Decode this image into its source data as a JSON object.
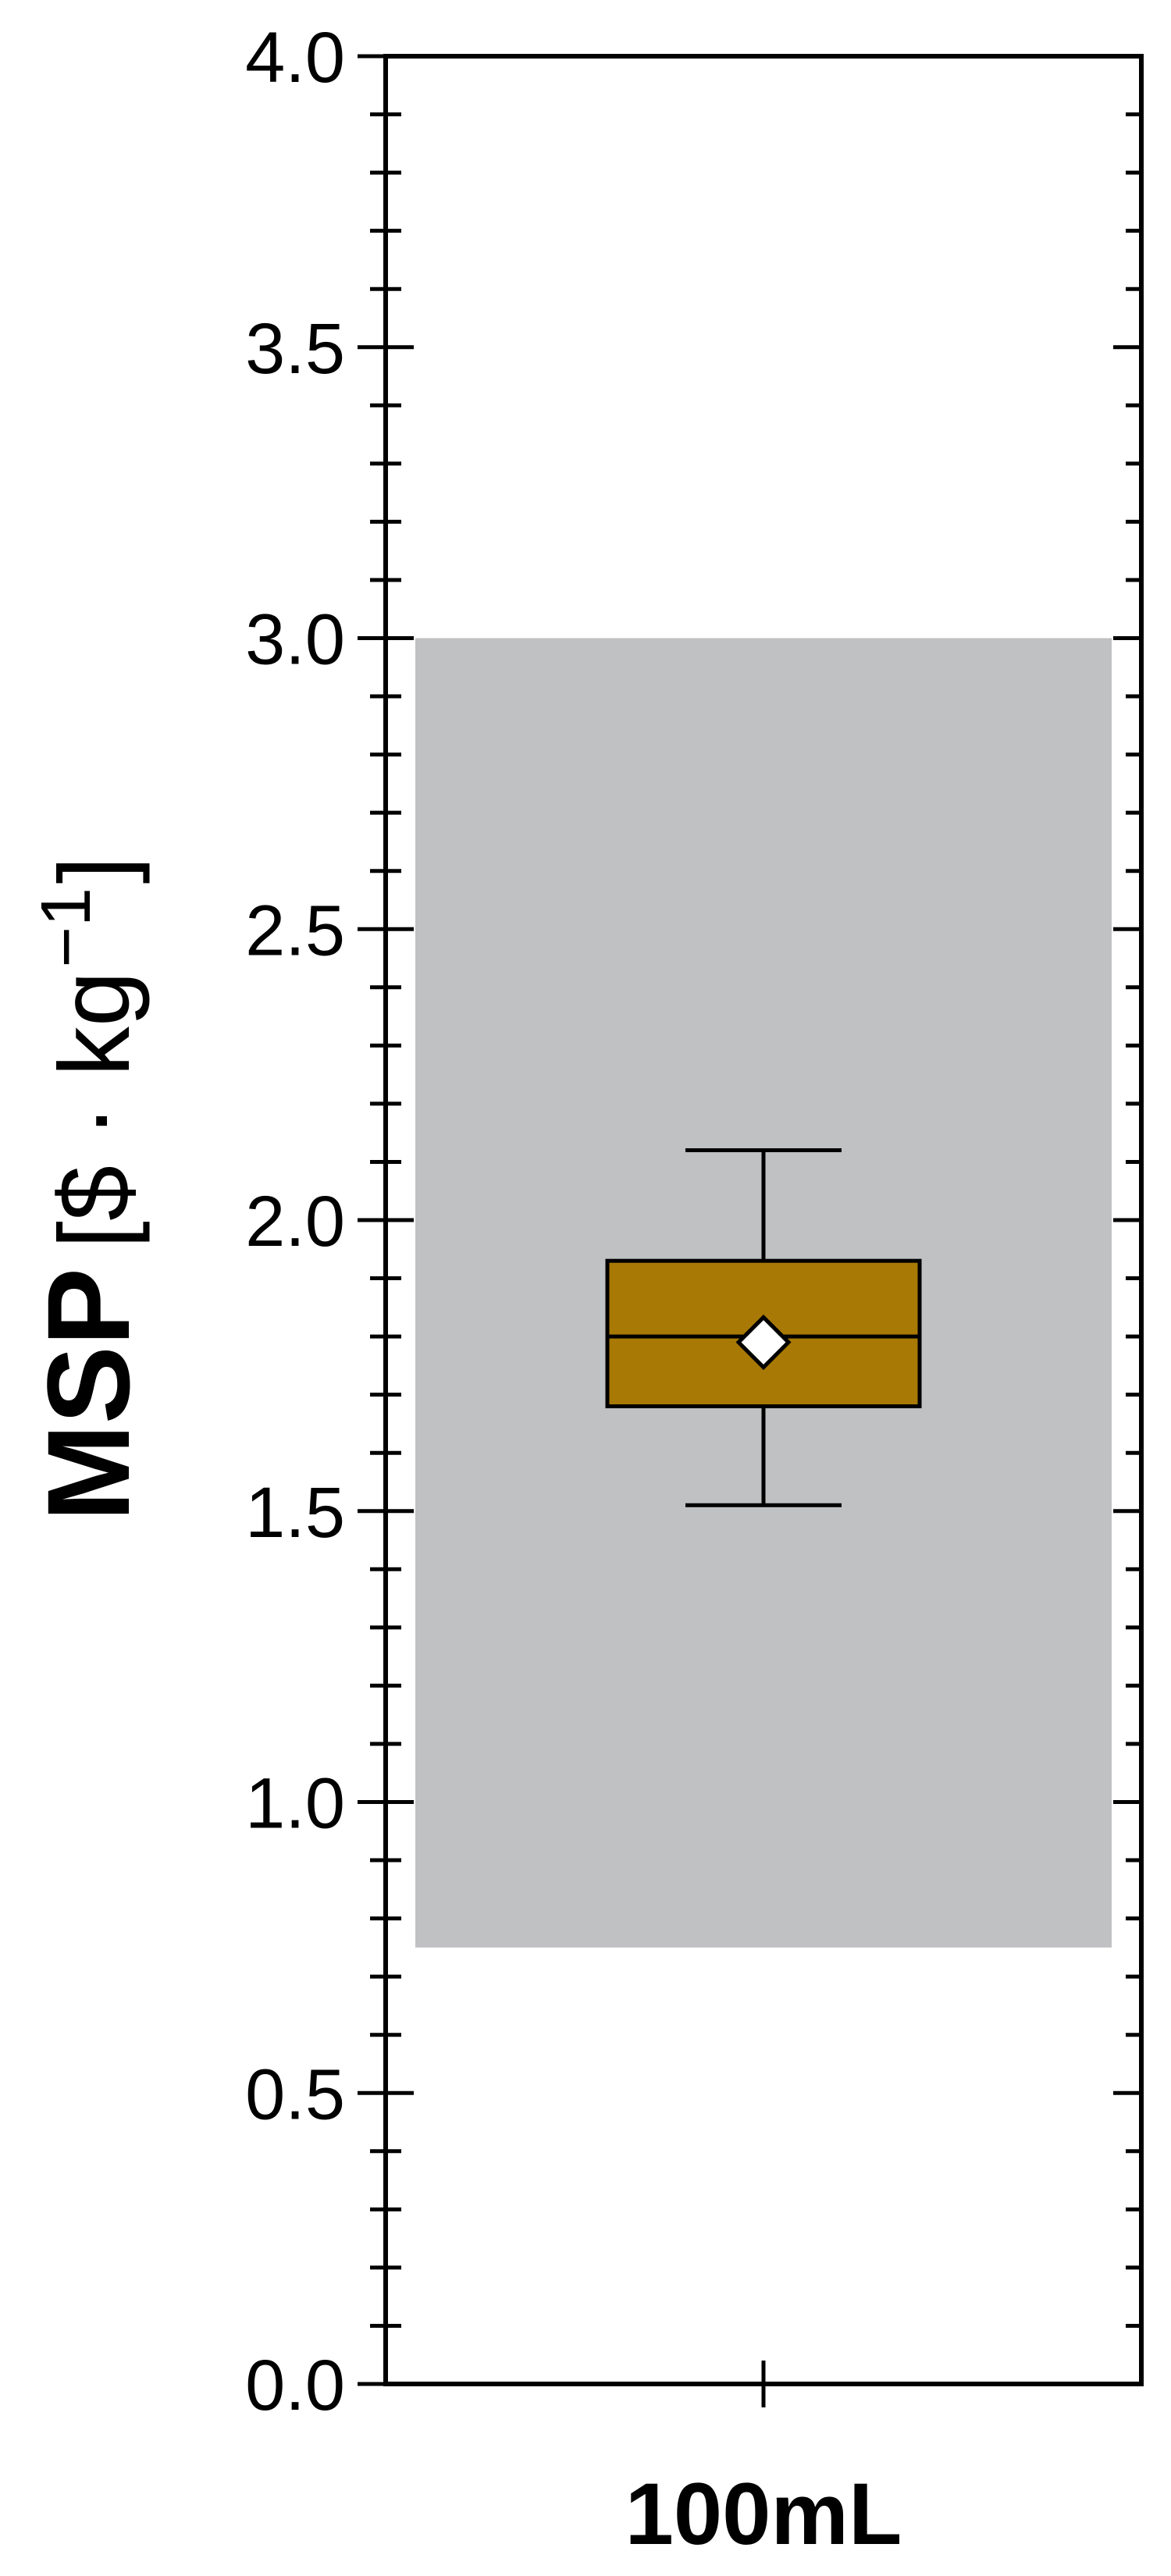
{
  "chart_data": {
    "type": "box",
    "ylabel": {
      "bold": "MSP",
      "unit": "[$ · kg",
      "exponent": "−1",
      "close": "]"
    },
    "ylim": [
      0,
      4
    ],
    "yticks": [
      "0.0",
      "0.5",
      "1.0",
      "1.5",
      "2.0",
      "2.5",
      "3.0",
      "3.5",
      "4.0"
    ],
    "ytick_values": [
      0,
      0.5,
      1.0,
      1.5,
      2.0,
      2.5,
      3.0,
      3.5,
      4.0
    ],
    "minor_tick_step": 0.1,
    "categories": [
      "100mL"
    ],
    "reference_band": {
      "y_low": 0.75,
      "y_high": 3.0,
      "color": "#c0c1c2"
    },
    "boxes": [
      {
        "category": "100mL",
        "whisker_low": 1.51,
        "q1": 1.68,
        "median": 1.8,
        "q3": 1.93,
        "whisker_high": 2.12,
        "mean": 1.79,
        "color": "#a87904"
      }
    ],
    "grid": false
  }
}
